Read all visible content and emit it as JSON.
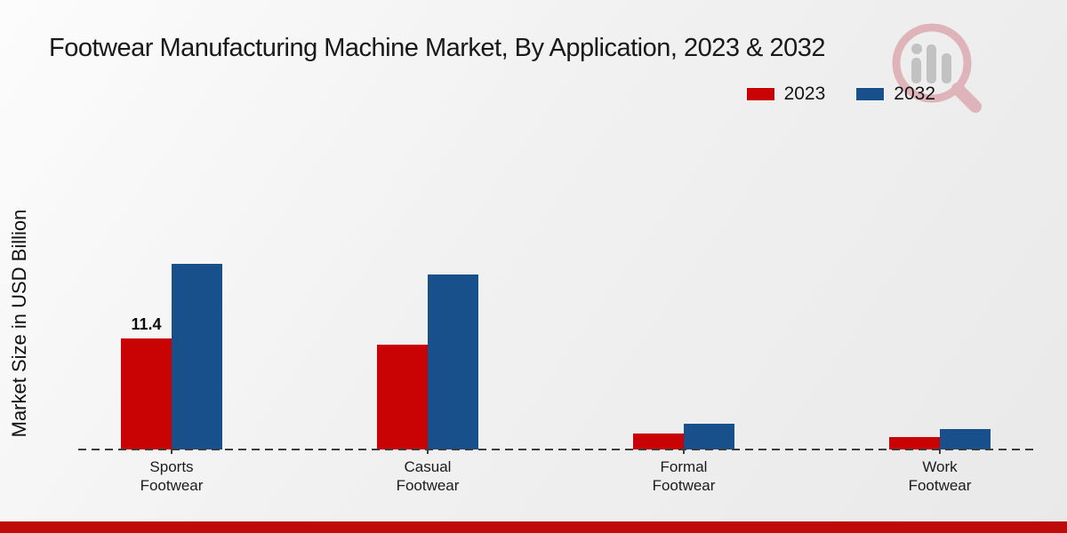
{
  "title": "Footwear Manufacturing Machine Market, By Application, 2023 & 2032",
  "watermark_icon": "magnifier-bar-chart-logo",
  "colors": {
    "red_2023": "#c90303",
    "blue_2032": "#18508c",
    "footer_bar": "#bf0a0a",
    "baseline": "#3d3d3d",
    "watermark_pink": "#dfb3ba",
    "watermark_gray": "#c2c2c2"
  },
  "chart_data": {
    "type": "bar",
    "title": "Footwear Manufacturing Machine Market, By Application, 2023 & 2032",
    "categories": [
      "Sports Footwear",
      "Casual Footwear",
      "Formal Footwear",
      "Work Footwear"
    ],
    "series": [
      {
        "name": "2023",
        "color": "#c90303",
        "values": [
          11.4,
          10.7,
          1.6,
          1.3
        ]
      },
      {
        "name": "2032",
        "color": "#18508c",
        "values": [
          19.0,
          17.9,
          2.6,
          2.1
        ]
      }
    ],
    "data_labels": [
      {
        "series_index": 0,
        "category_index": 0,
        "text": "11.4"
      }
    ],
    "xlabel": "",
    "ylabel": "Market Size in USD Billion",
    "ylim": [
      0,
      24
    ],
    "grid": false,
    "legend_position": "top-right",
    "baseline_style": "dashed"
  }
}
